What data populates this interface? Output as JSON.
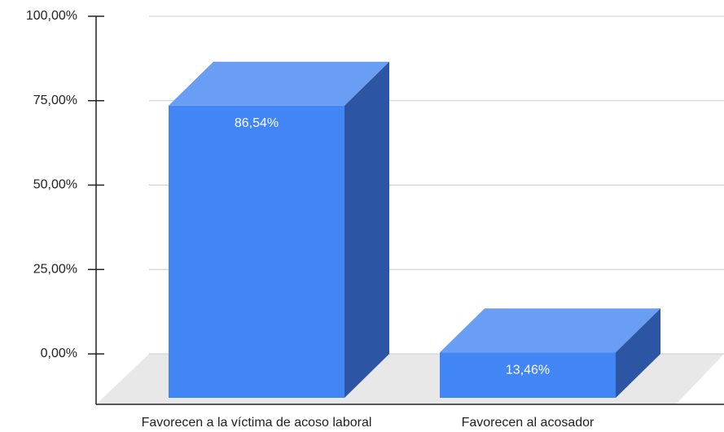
{
  "chart_data": {
    "type": "bar3d",
    "categories": [
      "Favorecen a la víctima de acoso laboral",
      "Favorecen al acosador"
    ],
    "values": [
      86.54,
      13.46
    ],
    "value_labels": [
      "86,54%",
      "13,46%"
    ],
    "color": "#4285f4",
    "ylim": [
      0,
      100
    ],
    "yticks": [
      {
        "value": 0,
        "label": "0,00%"
      },
      {
        "value": 25,
        "label": "25,00%"
      },
      {
        "value": 50,
        "label": "50,00%"
      },
      {
        "value": 75,
        "label": "75,00%"
      },
      {
        "value": 100,
        "label": "100,00%"
      }
    ],
    "grid": true
  }
}
